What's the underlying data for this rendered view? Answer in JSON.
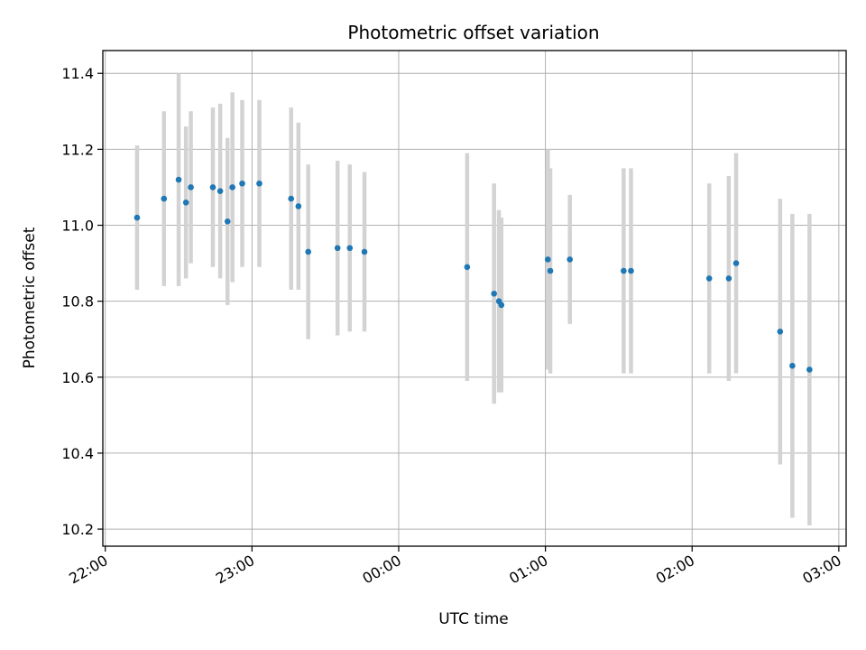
{
  "chart_data": {
    "type": "scatter",
    "title": "Photometric offset variation",
    "xlabel": "UTC time",
    "ylabel": "Photometric offset",
    "x_axis_type": "time",
    "x_tick_labels": [
      "22:00",
      "23:00",
      "00:00",
      "01:00",
      "02:00",
      "03:00"
    ],
    "xlim": [
      "21:59",
      "03:03"
    ],
    "y_tick_labels": [
      "10.2",
      "10.4",
      "10.6",
      "10.8",
      "11.0",
      "11.2",
      "11.4"
    ],
    "ylim": [
      10.155,
      11.46
    ],
    "grid": true,
    "colors": {
      "points": "#1f77b4",
      "errorbars": "#d3d3d3",
      "grid": "#b0b0b0"
    },
    "series": [
      {
        "points": [
          {
            "t": "22:13",
            "y": 11.02,
            "err": 0.19
          },
          {
            "t": "22:24",
            "y": 11.07,
            "err": 0.23
          },
          {
            "t": "22:30",
            "y": 11.12,
            "err": 0.28
          },
          {
            "t": "22:33",
            "y": 11.06,
            "err": 0.2
          },
          {
            "t": "22:35",
            "y": 11.1,
            "err": 0.2
          },
          {
            "t": "22:44",
            "y": 11.1,
            "err": 0.21
          },
          {
            "t": "22:47",
            "y": 11.09,
            "err": 0.23
          },
          {
            "t": "22:50",
            "y": 11.01,
            "err": 0.22
          },
          {
            "t": "22:52",
            "y": 11.1,
            "err": 0.25
          },
          {
            "t": "22:56",
            "y": 11.11,
            "err": 0.22
          },
          {
            "t": "23:03",
            "y": 11.11,
            "err": 0.22
          },
          {
            "t": "23:16",
            "y": 11.07,
            "err": 0.24
          },
          {
            "t": "23:19",
            "y": 11.05,
            "err": 0.22
          },
          {
            "t": "23:23",
            "y": 10.93,
            "err": 0.23
          },
          {
            "t": "23:35",
            "y": 10.94,
            "err": 0.23
          },
          {
            "t": "23:40",
            "y": 10.94,
            "err": 0.22
          },
          {
            "t": "23:46",
            "y": 10.93,
            "err": 0.21
          },
          {
            "t": "00:28",
            "y": 10.89,
            "err": 0.3
          },
          {
            "t": "00:39",
            "y": 10.82,
            "err": 0.29
          },
          {
            "t": "00:41",
            "y": 10.8,
            "err": 0.24
          },
          {
            "t": "00:42",
            "y": 10.79,
            "err": 0.23
          },
          {
            "t": "01:01",
            "y": 10.91,
            "err": 0.29
          },
          {
            "t": "01:02",
            "y": 10.88,
            "err": 0.27
          },
          {
            "t": "01:10",
            "y": 10.91,
            "err": 0.17
          },
          {
            "t": "01:32",
            "y": 10.88,
            "err": 0.27
          },
          {
            "t": "01:35",
            "y": 10.88,
            "err": 0.27
          },
          {
            "t": "02:07",
            "y": 10.86,
            "err": 0.25
          },
          {
            "t": "02:15",
            "y": 10.86,
            "err": 0.27
          },
          {
            "t": "02:18",
            "y": 10.9,
            "err": 0.29
          },
          {
            "t": "02:36",
            "y": 10.72,
            "err": 0.35
          },
          {
            "t": "02:41",
            "y": 10.63,
            "err": 0.4
          },
          {
            "t": "02:48",
            "y": 10.62,
            "err": 0.41
          }
        ]
      }
    ]
  }
}
